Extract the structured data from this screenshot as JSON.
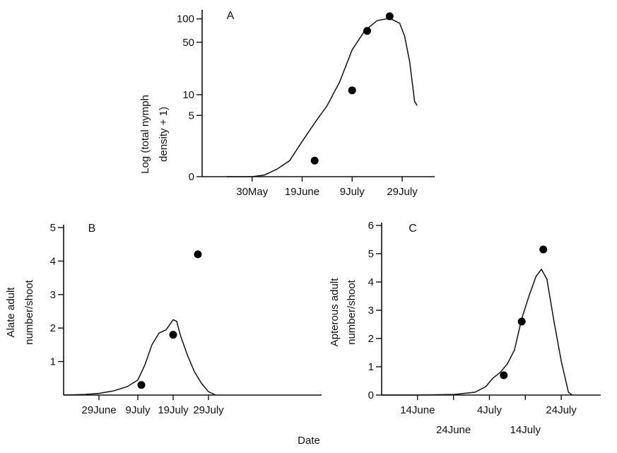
{
  "shared_xlabel": "Date",
  "chart_data": [
    {
      "panel": "A",
      "type": "line",
      "ylabel_lines": [
        "Log (total nymph",
        "density + 1)"
      ],
      "yscale": "log(y+1)",
      "ylim": [
        0,
        120
      ],
      "yticks": [
        0,
        5,
        10,
        50,
        100
      ],
      "xlim": [
        0,
        93
      ],
      "xticks": [
        {
          "label": "30May",
          "x": 20
        },
        {
          "label": "19June",
          "x": 40
        },
        {
          "label": "9July",
          "x": 60
        },
        {
          "label": "29July",
          "x": 80
        }
      ],
      "points": [
        [
          45,
          0.6
        ],
        [
          60,
          11.5
        ],
        [
          66,
          70
        ],
        [
          75,
          108
        ]
      ],
      "curve": [
        [
          10,
          0
        ],
        [
          20,
          0
        ],
        [
          25,
          0.05
        ],
        [
          30,
          0.25
        ],
        [
          35,
          0.6
        ],
        [
          40,
          1.8
        ],
        [
          45,
          3.8
        ],
        [
          50,
          7
        ],
        [
          55,
          15
        ],
        [
          60,
          40
        ],
        [
          65,
          70
        ],
        [
          70,
          95
        ],
        [
          75,
          102
        ],
        [
          79,
          88
        ],
        [
          81,
          60
        ],
        [
          83,
          28
        ],
        [
          85,
          8
        ],
        [
          86,
          7
        ]
      ],
      "legend": null
    },
    {
      "panel": "B",
      "type": "line",
      "ylabel_lines": [
        "Alate adult",
        "number/shoot"
      ],
      "ylim": [
        0,
        5
      ],
      "yticks": [
        1,
        2,
        3,
        4,
        5
      ],
      "xlim": [
        0,
        73
      ],
      "xticks": [
        {
          "label": "29June",
          "x": 10
        },
        {
          "label": "9July",
          "x": 21
        },
        {
          "label": "19July",
          "x": 31
        },
        {
          "label": "29July",
          "x": 41
        }
      ],
      "points": [
        [
          22,
          0.3
        ],
        [
          31,
          1.8
        ],
        [
          38,
          4.2
        ]
      ],
      "curve": [
        [
          0,
          0
        ],
        [
          6,
          0.02
        ],
        [
          10,
          0.05
        ],
        [
          14,
          0.12
        ],
        [
          18,
          0.25
        ],
        [
          21,
          0.45
        ],
        [
          23,
          0.9
        ],
        [
          25,
          1.5
        ],
        [
          27,
          1.85
        ],
        [
          29,
          1.95
        ],
        [
          31,
          2.25
        ],
        [
          32,
          2.2
        ],
        [
          33,
          1.8
        ],
        [
          35,
          1.2
        ],
        [
          37,
          0.7
        ],
        [
          39,
          0.35
        ],
        [
          41,
          0.1
        ],
        [
          43,
          0
        ]
      ],
      "legend": null
    },
    {
      "panel": "C",
      "type": "line",
      "ylabel_lines": [
        "Apterous adult",
        "number/shoot"
      ],
      "ylim": [
        0,
        6
      ],
      "yticks": [
        0,
        1,
        2,
        3,
        4,
        5,
        6
      ],
      "xlim": [
        0,
        61
      ],
      "xticks": [
        {
          "label": "14June",
          "x": 10,
          "row": 1
        },
        {
          "label": "24June",
          "x": 20,
          "row": 2
        },
        {
          "label": "4July",
          "x": 30,
          "row": 1
        },
        {
          "label": "14July",
          "x": 40,
          "row": 2
        },
        {
          "label": "24July",
          "x": 50,
          "row": 1
        }
      ],
      "points": [
        [
          34,
          0.7
        ],
        [
          39,
          2.6
        ],
        [
          45,
          5.15
        ]
      ],
      "curve": [
        [
          0,
          0
        ],
        [
          10,
          0
        ],
        [
          20,
          0.02
        ],
        [
          26,
          0.1
        ],
        [
          29,
          0.3
        ],
        [
          31,
          0.6
        ],
        [
          33,
          0.8
        ],
        [
          35,
          1.1
        ],
        [
          37,
          1.6
        ],
        [
          39,
          2.7
        ],
        [
          41,
          3.5
        ],
        [
          43,
          4.2
        ],
        [
          44.5,
          4.45
        ],
        [
          46,
          4.1
        ],
        [
          48,
          2.6
        ],
        [
          50,
          1.2
        ],
        [
          52,
          0.1
        ],
        [
          53,
          0
        ]
      ],
      "legend": null
    }
  ]
}
